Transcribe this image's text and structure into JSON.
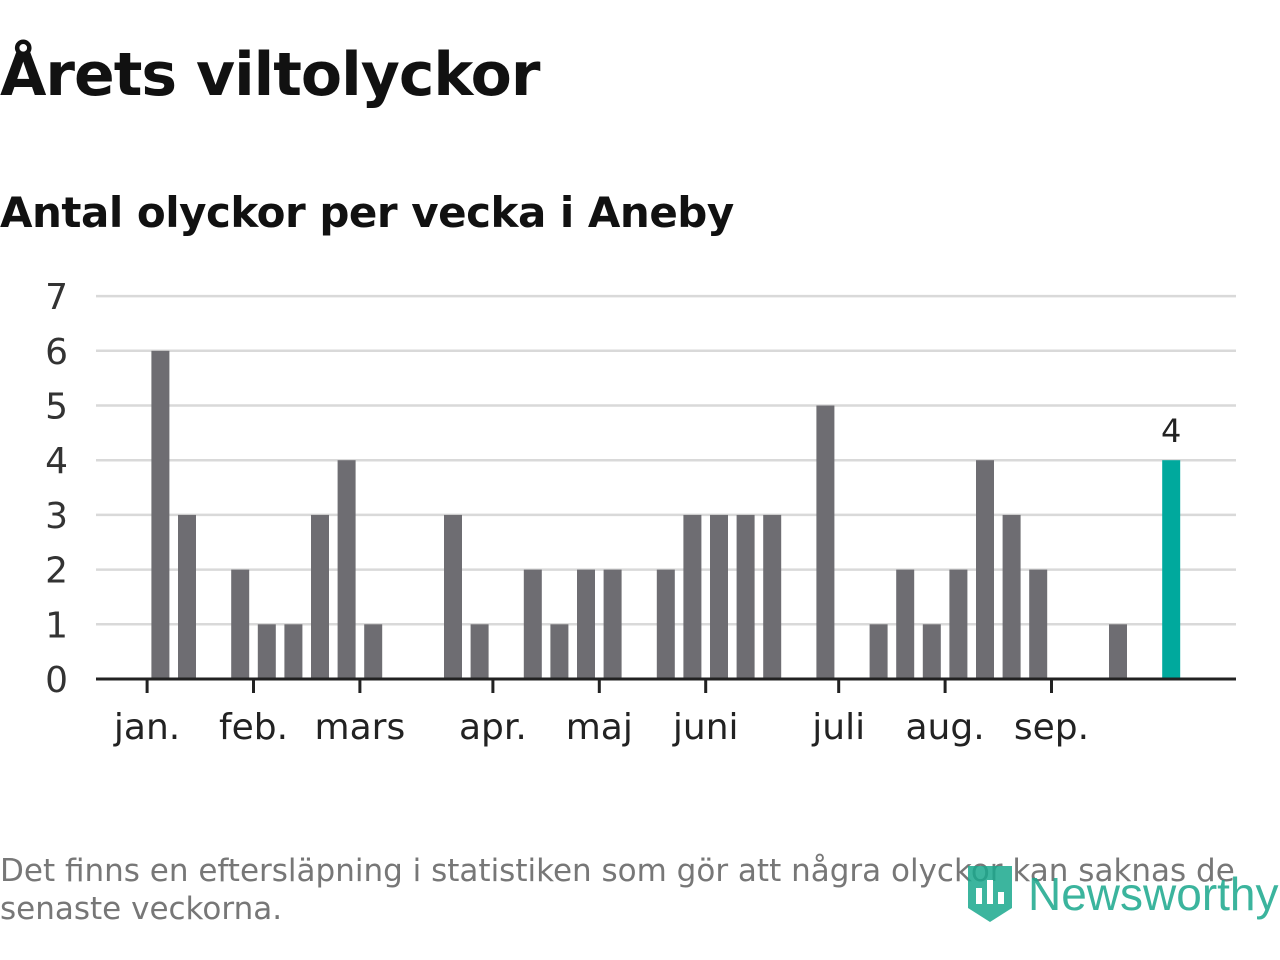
{
  "title": "Årets viltolyckor",
  "subtitle": "Antal olyckor per vecka i Aneby",
  "footnote": "Det finns en eftersläpning i statistiken som gör att några olyckor kan saknas de senaste veckorna.",
  "logo": {
    "text": "Newsworthy",
    "icon": "newsworthy-logo-icon"
  },
  "colors": {
    "bar": "#6e6d72",
    "highlight": "#00a99d",
    "grid": "#d9d9d9",
    "axis": "#222222",
    "text": "#111111",
    "muted": "#777777",
    "brand": "#1aa88d"
  },
  "chart_data": {
    "type": "bar",
    "x_unit": "week",
    "x": [
      1,
      2,
      3,
      4,
      5,
      6,
      7,
      8,
      9,
      10,
      11,
      12,
      13,
      14,
      15,
      16,
      17,
      18,
      19,
      20,
      21,
      22,
      23,
      24,
      25,
      26,
      27,
      28,
      29,
      30,
      31,
      32,
      33,
      34,
      35,
      36,
      37,
      38,
      39,
      40,
      41
    ],
    "values": [
      0,
      6,
      3,
      0,
      2,
      1,
      1,
      3,
      4,
      1,
      0,
      0,
      3,
      1,
      0,
      2,
      1,
      2,
      2,
      0,
      2,
      3,
      3,
      3,
      3,
      0,
      5,
      0,
      1,
      2,
      1,
      2,
      4,
      3,
      2,
      0,
      0,
      1,
      0,
      4,
      0
    ],
    "highlight_index": 39,
    "highlight_label": "4",
    "ylim": [
      0,
      7
    ],
    "yticks": [
      0,
      1,
      2,
      3,
      4,
      5,
      6,
      7
    ],
    "month_ticks": [
      {
        "label": "jan.",
        "week": 1.5
      },
      {
        "label": "feb.",
        "week": 5.5
      },
      {
        "label": "mars",
        "week": 9.5
      },
      {
        "label": "apr.",
        "week": 14.5
      },
      {
        "label": "maj",
        "week": 18.5
      },
      {
        "label": "juni",
        "week": 22.5
      },
      {
        "label": "juli",
        "week": 27.5
      },
      {
        "label": "aug.",
        "week": 31.5
      },
      {
        "label": "sep.",
        "week": 35.5
      }
    ],
    "xlabel": "",
    "ylabel": "",
    "grid": true,
    "legend": "none"
  }
}
